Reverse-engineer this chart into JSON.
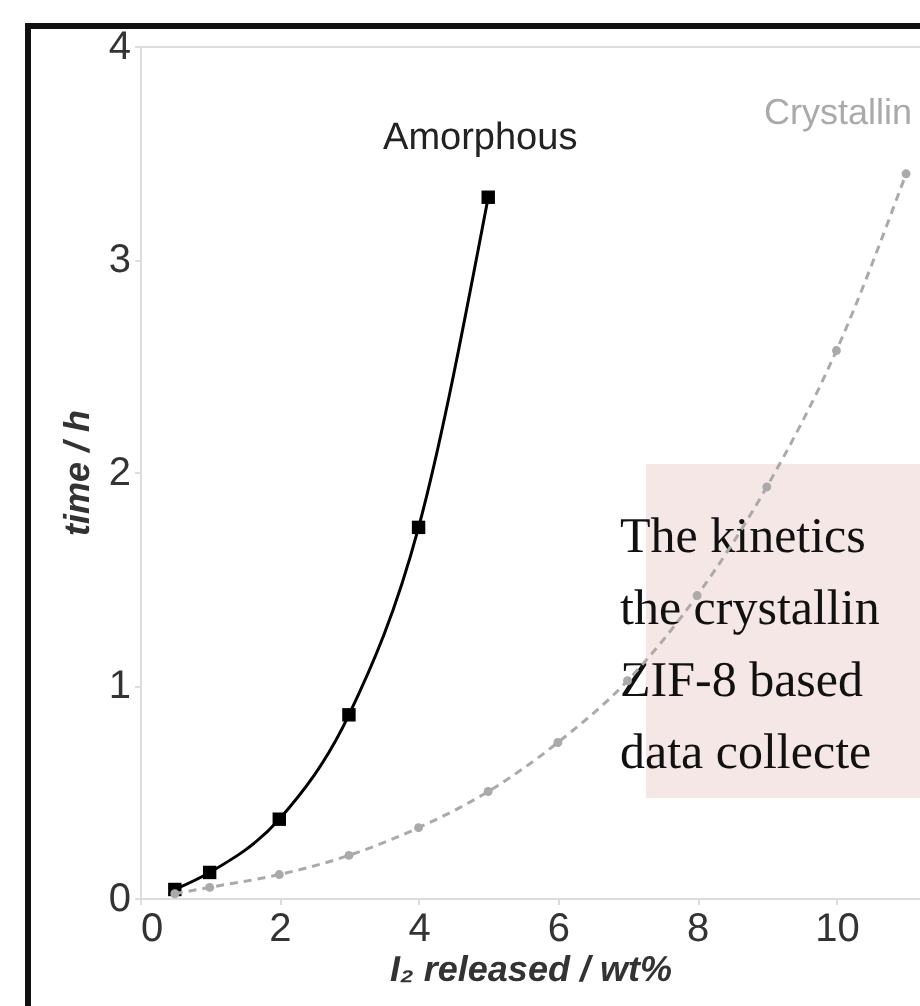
{
  "chart_data": {
    "type": "line",
    "xlabel": "I₂ released / wt%",
    "ylabel": "time / h",
    "xlim": [
      0,
      11.2
    ],
    "xticks": [
      0,
      2,
      4,
      6,
      8,
      10
    ],
    "ylim": [
      0,
      4
    ],
    "yticks": [
      {
        "value": 0,
        "label": "0"
      },
      {
        "value": 1,
        "label": "1"
      },
      {
        "value": 2,
        "label": "2"
      },
      {
        "value": 3,
        "label": "3"
      },
      {
        "value": 4,
        "label": "4"
      }
    ],
    "grid": false,
    "legend": false,
    "series": [
      {
        "name": "Amorphous",
        "color": "#000000",
        "marker": "square",
        "line_style": "solid",
        "x": [
          0.5,
          1,
          2,
          3,
          4,
          5
        ],
        "values": [
          0.04,
          0.12,
          0.37,
          0.86,
          1.74,
          3.29
        ]
      },
      {
        "name": "Crystallin",
        "color": "#aaaaaa",
        "marker": "circle",
        "line_style": "dashed",
        "x": [
          0.5,
          1,
          2,
          3,
          4,
          5,
          6,
          7,
          8,
          9,
          10,
          11
        ],
        "values": [
          0.02,
          0.05,
          0.11,
          0.2,
          0.33,
          0.5,
          0.73,
          1.02,
          1.42,
          1.93,
          2.57,
          3.4
        ]
      }
    ],
    "annotations": [
      "The kinetics",
      "the crystallin",
      "ZIF-8 based",
      "data collecte"
    ]
  }
}
